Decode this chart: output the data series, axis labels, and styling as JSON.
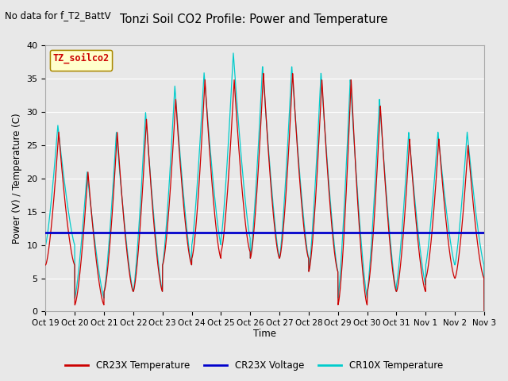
{
  "title": "Tonzi Soil CO2 Profile: Power and Temperature",
  "subtitle": "No data for f_T2_BattV",
  "ylabel": "Power (V) / Temperature (C)",
  "xlabel": "Time",
  "ylim": [
    0,
    40
  ],
  "xlim": [
    0,
    15
  ],
  "yticks": [
    0,
    5,
    10,
    15,
    20,
    25,
    30,
    35,
    40
  ],
  "xtick_labels": [
    "Oct 19",
    "Oct 20",
    "Oct 21",
    "Oct 22",
    "Oct 23",
    "Oct 24",
    "Oct 25",
    "Oct 26",
    "Oct 27",
    "Oct 28",
    "Oct 29",
    "Oct 30",
    "Oct 31",
    "Nov 1",
    "Nov 2",
    "Nov 3"
  ],
  "background_color": "#e8e8e8",
  "plot_bg_color": "#e8e8e8",
  "grid_color": "#ffffff",
  "voltage_level": 11.9,
  "legend_label_text": "TZ_soilco2",
  "cr23x_color": "#cc0000",
  "cr10x_color": "#00cccc",
  "voltage_color": "#0000cc",
  "legend_entries": [
    "CR23X Temperature",
    "CR23X Voltage",
    "CR10X Temperature"
  ],
  "cr23x_peaks": [
    27,
    21,
    27,
    29,
    32,
    35,
    35,
    36,
    36,
    35,
    35,
    31,
    26,
    26,
    25
  ],
  "cr23x_mins": [
    7,
    1,
    3,
    3,
    7,
    8,
    9,
    8,
    8,
    6,
    1,
    3,
    3,
    5,
    5
  ],
  "cr10x_peaks": [
    28,
    21,
    27,
    30,
    34,
    36,
    39,
    37,
    37,
    36,
    35,
    32,
    27,
    27,
    27
  ],
  "cr10x_mins": [
    10,
    2,
    3,
    3,
    7,
    10,
    11,
    8,
    8,
    6,
    2,
    3,
    4,
    7,
    7
  ]
}
